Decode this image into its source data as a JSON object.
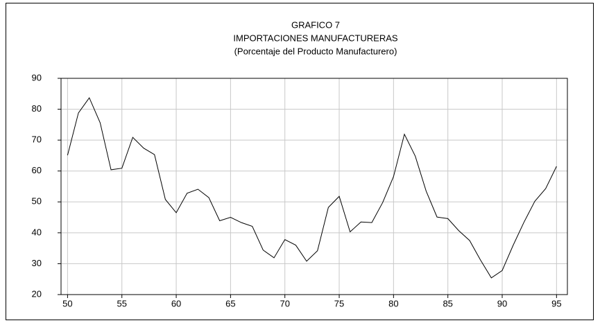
{
  "chart_data": {
    "type": "line",
    "title": "GRAFICO 7",
    "subtitle": [
      "IMPORTACIONES MANUFACTURERAS",
      "(Porcentaje del Producto Manufacturero)"
    ],
    "x": [
      50,
      51,
      52,
      53,
      54,
      55,
      56,
      57,
      58,
      59,
      60,
      61,
      62,
      63,
      64,
      65,
      66,
      67,
      68,
      69,
      70,
      71,
      72,
      73,
      74,
      75,
      76,
      77,
      78,
      79,
      80,
      81,
      82,
      83,
      84,
      85,
      86,
      87,
      88,
      89,
      90,
      91,
      92,
      93,
      94,
      95
    ],
    "series": [
      {
        "name": "Importaciones manufactureras",
        "color": "#000000",
        "values": [
          65.1,
          78.8,
          83.7,
          75.6,
          60.4,
          60.9,
          70.9,
          67.4,
          65.3,
          50.8,
          46.5,
          52.8,
          54.1,
          51.4,
          43.9,
          45.0,
          43.3,
          42.1,
          34.4,
          31.9,
          37.8,
          36.0,
          30.8,
          34.2,
          48.2,
          51.8,
          40.3,
          43.5,
          43.3,
          49.8,
          58.2,
          71.9,
          64.8,
          53.5,
          45.1,
          44.6,
          40.7,
          37.5,
          31.2,
          25.4,
          27.8,
          35.9,
          43.4,
          50.2,
          54.3,
          61.5
        ]
      }
    ],
    "xlim": [
      49.4,
      96
    ],
    "xticks": [
      50,
      55,
      60,
      65,
      70,
      75,
      80,
      85,
      90,
      95
    ],
    "ylim": [
      20,
      90
    ],
    "yticks": [
      20,
      30,
      40,
      50,
      60,
      70,
      80,
      90
    ],
    "grid": true
  }
}
